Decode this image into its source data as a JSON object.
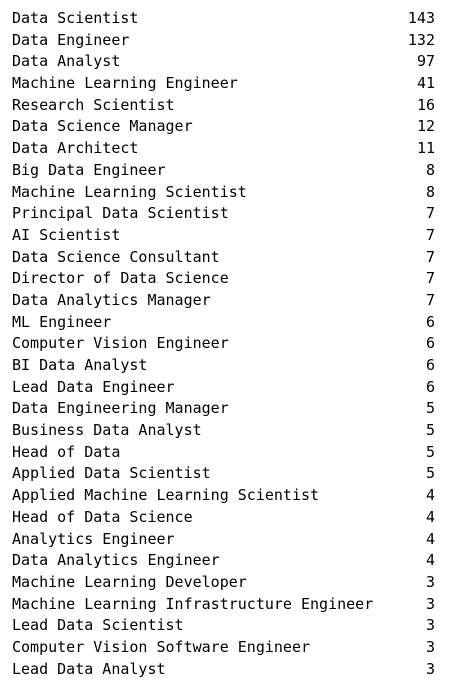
{
  "output": {
    "rows": [
      {
        "label": "Data Scientist",
        "count": "143"
      },
      {
        "label": "Data Engineer",
        "count": "132"
      },
      {
        "label": "Data Analyst",
        "count": "97"
      },
      {
        "label": "Machine Learning Engineer",
        "count": "41"
      },
      {
        "label": "Research Scientist",
        "count": "16"
      },
      {
        "label": "Data Science Manager",
        "count": "12"
      },
      {
        "label": "Data Architect",
        "count": "11"
      },
      {
        "label": "Big Data Engineer",
        "count": "8"
      },
      {
        "label": "Machine Learning Scientist",
        "count": "8"
      },
      {
        "label": "Principal Data Scientist",
        "count": "7"
      },
      {
        "label": "AI Scientist",
        "count": "7"
      },
      {
        "label": "Data Science Consultant",
        "count": "7"
      },
      {
        "label": "Director of Data Science",
        "count": "7"
      },
      {
        "label": "Data Analytics Manager",
        "count": "7"
      },
      {
        "label": "ML Engineer",
        "count": "6"
      },
      {
        "label": "Computer Vision Engineer",
        "count": "6"
      },
      {
        "label": "BI Data Analyst",
        "count": "6"
      },
      {
        "label": "Lead Data Engineer",
        "count": "6"
      },
      {
        "label": "Data Engineering Manager",
        "count": "5"
      },
      {
        "label": "Business Data Analyst",
        "count": "5"
      },
      {
        "label": "Head of Data",
        "count": "5"
      },
      {
        "label": "Applied Data Scientist",
        "count": "5"
      },
      {
        "label": "Applied Machine Learning Scientist",
        "count": "4"
      },
      {
        "label": "Head of Data Science",
        "count": "4"
      },
      {
        "label": "Analytics Engineer",
        "count": "4"
      },
      {
        "label": "Data Analytics Engineer",
        "count": "4"
      },
      {
        "label": "Machine Learning Developer",
        "count": "3"
      },
      {
        "label": "Machine Learning Infrastructure Engineer",
        "count": "3"
      },
      {
        "label": "Lead Data Scientist",
        "count": "3"
      },
      {
        "label": "Computer Vision Software Engineer",
        "count": "3"
      },
      {
        "label": "Lead Data Analyst",
        "count": "3"
      }
    ]
  }
}
